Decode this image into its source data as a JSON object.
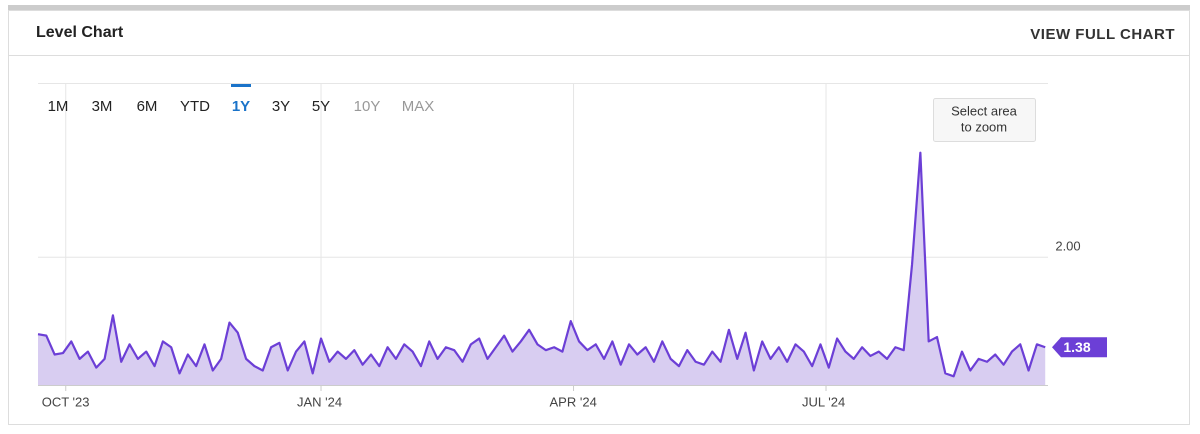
{
  "header": {
    "title": "Level Chart",
    "link": "VIEW FULL CHART"
  },
  "ranges": {
    "items": [
      "1M",
      "3M",
      "6M",
      "YTD",
      "1Y",
      "3Y",
      "5Y",
      "10Y",
      "MAX"
    ],
    "selected": "1Y",
    "disabled": [
      "10Y",
      "MAX"
    ]
  },
  "zoom_hint": [
    "Select area",
    "to zoom"
  ],
  "chart_data": {
    "type": "area",
    "x": [
      0,
      3,
      6,
      9,
      12,
      15,
      18,
      21,
      24,
      27,
      30,
      33,
      36,
      39,
      42,
      45,
      48,
      51,
      54,
      57,
      60,
      63,
      66,
      69,
      72,
      75,
      78,
      81,
      84,
      87,
      90,
      93,
      96,
      99,
      102,
      105,
      108,
      111,
      114,
      117,
      120,
      123,
      126,
      129,
      132,
      135,
      138,
      141,
      144,
      147,
      150,
      153,
      156,
      159,
      162,
      165,
      168,
      171,
      174,
      177,
      180,
      183,
      186,
      189,
      192,
      195,
      198,
      201,
      204,
      207,
      210,
      213,
      216,
      219,
      222,
      225,
      228,
      231,
      234,
      237,
      240,
      243,
      246,
      249,
      252,
      255,
      258,
      261,
      264,
      267,
      270,
      273,
      276,
      279,
      282,
      285,
      288,
      291,
      294,
      297,
      300,
      303,
      306,
      309,
      312,
      315,
      318,
      321,
      324,
      327,
      330,
      333,
      336,
      339,
      342,
      345,
      348,
      351,
      354,
      357,
      360,
      363
    ],
    "series": [
      {
        "name": "Level",
        "color": "#6c3fd6",
        "fill": "#d8cdf1",
        "values": [
          1.47,
          1.46,
          1.33,
          1.34,
          1.42,
          1.3,
          1.35,
          1.24,
          1.3,
          1.6,
          1.28,
          1.4,
          1.3,
          1.35,
          1.25,
          1.42,
          1.38,
          1.2,
          1.33,
          1.25,
          1.4,
          1.22,
          1.3,
          1.55,
          1.48,
          1.3,
          1.25,
          1.22,
          1.38,
          1.41,
          1.22,
          1.35,
          1.42,
          1.2,
          1.44,
          1.28,
          1.35,
          1.3,
          1.36,
          1.26,
          1.33,
          1.25,
          1.38,
          1.3,
          1.4,
          1.35,
          1.25,
          1.42,
          1.3,
          1.38,
          1.36,
          1.28,
          1.4,
          1.44,
          1.3,
          1.38,
          1.46,
          1.35,
          1.42,
          1.5,
          1.4,
          1.36,
          1.38,
          1.35,
          1.56,
          1.42,
          1.36,
          1.4,
          1.3,
          1.42,
          1.26,
          1.4,
          1.33,
          1.38,
          1.28,
          1.42,
          1.3,
          1.25,
          1.36,
          1.28,
          1.26,
          1.35,
          1.28,
          1.5,
          1.3,
          1.48,
          1.22,
          1.42,
          1.3,
          1.38,
          1.28,
          1.4,
          1.35,
          1.25,
          1.4,
          1.24,
          1.44,
          1.35,
          1.3,
          1.38,
          1.32,
          1.35,
          1.3,
          1.38,
          1.36,
          1.95,
          2.72,
          1.42,
          1.45,
          1.2,
          1.18,
          1.35,
          1.22,
          1.3,
          1.28,
          1.33,
          1.26,
          1.35,
          1.4,
          1.22,
          1.4,
          1.38
        ]
      }
    ],
    "xlim": [
      0,
      364
    ],
    "xticks": [
      {
        "value": 10,
        "label": "OCT '23"
      },
      {
        "value": 102,
        "label": "JAN '24"
      },
      {
        "value": 193,
        "label": "APR '24"
      },
      {
        "value": 284,
        "label": "JUL '24"
      }
    ],
    "ylim": [
      1.12,
      3.2
    ],
    "yticks": [
      {
        "value": 2,
        "label": "2.00"
      }
    ],
    "grid": true
  }
}
